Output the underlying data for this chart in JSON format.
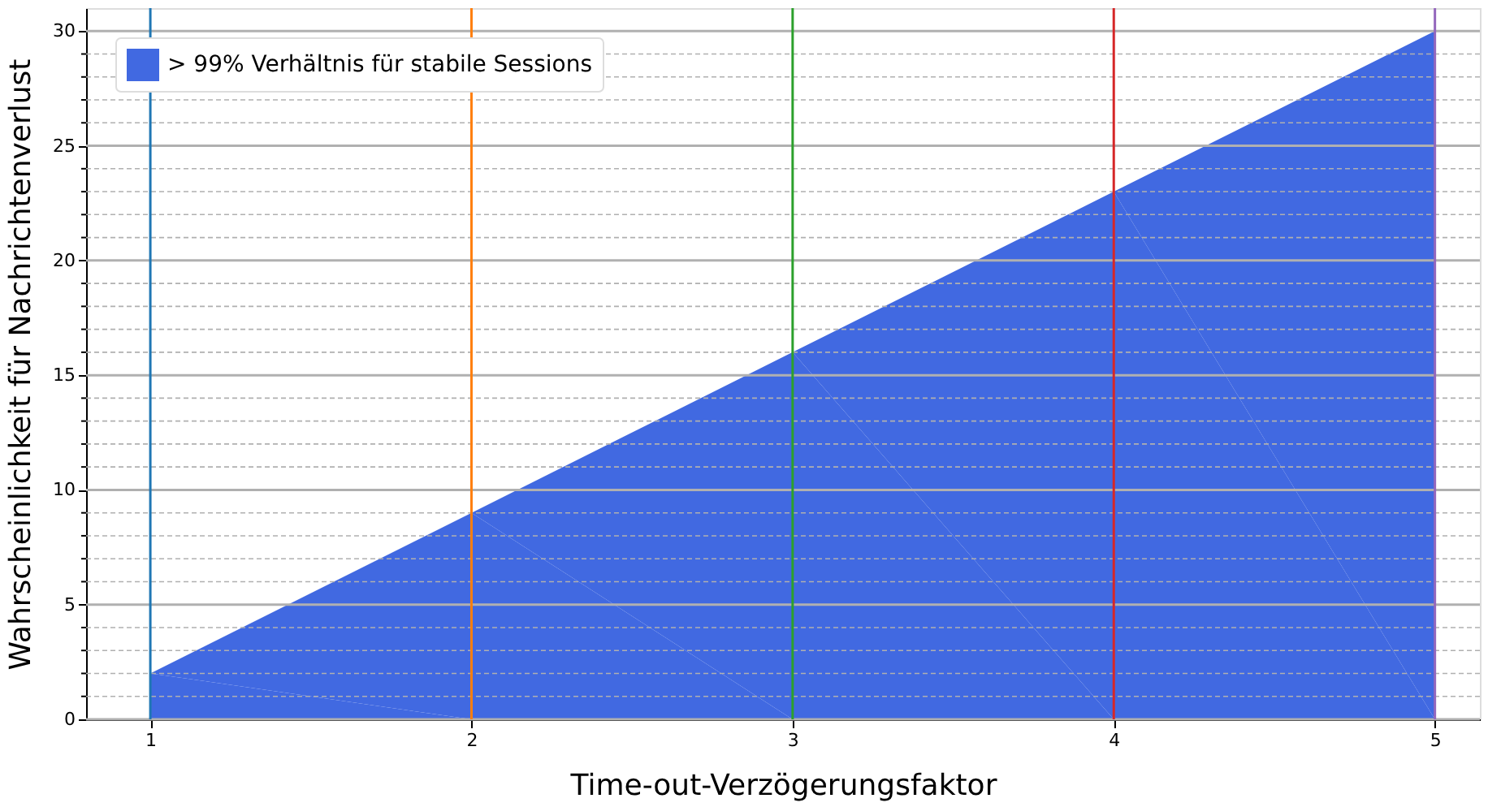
{
  "chart_data": {
    "type": "area",
    "xlabel": "Time-out-Verzögerungsfaktor",
    "ylabel": "Wahrscheinlichkeit für Nachrichtenverlust",
    "x": [
      1,
      2,
      3,
      4,
      5
    ],
    "series": [
      {
        "name": "> 99% Verhältnis für stabile Sessions",
        "color": "#4169e1",
        "values": [
          2,
          9,
          16,
          23,
          30
        ]
      }
    ],
    "xlim": [
      0.8,
      5.14
    ],
    "xticks": [
      1,
      2,
      3,
      4,
      5
    ],
    "ylim": [
      0,
      31
    ],
    "yticks": [
      0,
      {
        "value": 1,
        "label": null
      },
      {
        "value": 2,
        "label": null
      },
      {
        "value": 3,
        "label": null
      },
      {
        "value": 4,
        "label": null
      },
      5,
      {
        "value": 6,
        "label": null
      },
      {
        "value": 7,
        "label": null
      },
      {
        "value": 8,
        "label": null
      },
      {
        "value": 9,
        "label": null
      },
      10,
      {
        "value": 11,
        "label": null
      },
      {
        "value": 12,
        "label": null
      },
      {
        "value": 13,
        "label": null
      },
      {
        "value": 14,
        "label": null
      },
      15,
      {
        "value": 16,
        "label": null
      },
      {
        "value": 17,
        "label": null
      },
      {
        "value": 18,
        "label": null
      },
      {
        "value": 19,
        "label": null
      },
      20,
      {
        "value": 21,
        "label": null
      },
      {
        "value": 22,
        "label": null
      },
      {
        "value": 23,
        "label": null
      },
      {
        "value": 24,
        "label": null
      },
      25,
      {
        "value": 26,
        "label": null
      },
      {
        "value": 27,
        "label": null
      },
      {
        "value": 28,
        "label": null
      },
      {
        "value": 29,
        "label": null
      },
      30
    ],
    "grid": "y",
    "legend": "top left",
    "ref_lines": [
      {
        "axis": "x",
        "value": 1,
        "color": "#1f77b4"
      },
      {
        "axis": "x",
        "value": 2,
        "color": "#ff7f0e"
      },
      {
        "axis": "x",
        "value": 3,
        "color": "#2ca02c"
      },
      {
        "axis": "x",
        "value": 4,
        "color": "#d62728"
      },
      {
        "axis": "x",
        "value": 5,
        "color": "#9467bd"
      }
    ]
  }
}
